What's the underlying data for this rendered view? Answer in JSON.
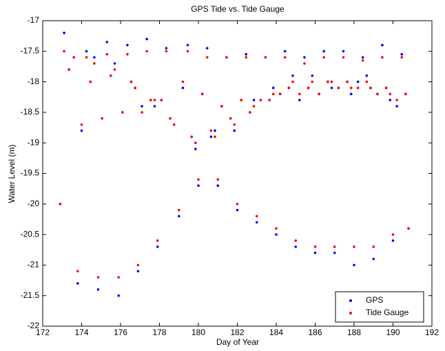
{
  "chart_data": {
    "type": "scatter",
    "title": "GPS Tide vs. Tide Gauge",
    "x_label": "Day of Year",
    "y_label": "Water Level (m)",
    "x": [
      172.9,
      173.1,
      173.35,
      173.6,
      173.8,
      174.0,
      174.25,
      174.45,
      174.65,
      174.85,
      175.05,
      175.3,
      175.5,
      175.7,
      175.9,
      176.1,
      176.35,
      176.55,
      176.75,
      176.9,
      177.1,
      177.35,
      177.55,
      177.75,
      177.9,
      178.1,
      178.35,
      178.55,
      178.75,
      179.0,
      179.2,
      179.45,
      179.65,
      179.85,
      180.0,
      180.2,
      180.45,
      180.65,
      180.85,
      181.0,
      181.2,
      181.45,
      181.65,
      181.85,
      182.0,
      182.2,
      182.45,
      182.65,
      182.85,
      183.0,
      183.2,
      183.45,
      183.65,
      183.85,
      184.0,
      184.2,
      184.45,
      184.65,
      184.85,
      185.0,
      185.2,
      185.45,
      185.65,
      185.85,
      186.0,
      186.2,
      186.45,
      186.65,
      186.85,
      187.0,
      187.2,
      187.45,
      187.65,
      187.85,
      188.0,
      188.2,
      188.45,
      188.65,
      188.85,
      189.0,
      189.2,
      189.45,
      189.65,
      189.85,
      190.0,
      190.2,
      190.45,
      190.65,
      190.8
    ],
    "series": [
      {
        "name": "GPS",
        "color": "#0000ff",
        "values": [
          -20.0,
          -17.2,
          -17.8,
          -17.6,
          -21.3,
          -18.8,
          -17.5,
          -18.0,
          -17.6,
          -21.4,
          -18.6,
          -17.35,
          -17.9,
          -17.7,
          -21.5,
          -18.5,
          -17.4,
          -18.0,
          -18.1,
          -21.1,
          -18.4,
          -17.3,
          -18.3,
          -18.4,
          -20.7,
          -18.3,
          -17.45,
          -18.6,
          -18.7,
          -20.2,
          -18.1,
          -17.4,
          -18.9,
          -19.1,
          -19.7,
          -18.2,
          -17.45,
          -18.9,
          -18.8,
          -19.7,
          -18.4,
          -17.6,
          -18.6,
          -18.8,
          -20.1,
          -18.3,
          -17.55,
          -18.5,
          -18.3,
          -20.3,
          -18.3,
          -17.6,
          -18.3,
          -18.1,
          -20.5,
          -18.2,
          -17.5,
          -18.1,
          -17.9,
          -20.7,
          -18.3,
          -17.6,
          -18.1,
          -17.9,
          -20.8,
          -18.2,
          -17.5,
          -18.0,
          -18.1,
          -20.8,
          -18.1,
          -17.5,
          -18.0,
          -18.2,
          -21.0,
          -18.0,
          -17.6,
          -17.9,
          -18.1,
          -20.9,
          -18.2,
          -17.4,
          -18.1,
          -18.3,
          -20.6,
          -18.4,
          -17.55,
          -18.2,
          -20.4
        ]
      },
      {
        "name": "Tide Gauge",
        "color": "#ff0000",
        "values": [
          -20.0,
          -17.5,
          -17.8,
          -17.6,
          -21.1,
          -18.7,
          -17.6,
          -18.0,
          -17.7,
          -21.2,
          -18.6,
          -17.55,
          -17.9,
          -17.8,
          -21.2,
          -18.5,
          -17.55,
          -18.0,
          -18.1,
          -21.0,
          -18.5,
          -17.5,
          -18.3,
          -18.3,
          -20.6,
          -18.3,
          -17.5,
          -18.6,
          -18.7,
          -20.1,
          -18.0,
          -17.5,
          -18.9,
          -19.0,
          -19.6,
          -18.2,
          -17.6,
          -18.8,
          -18.9,
          -19.6,
          -18.4,
          -17.6,
          -18.6,
          -18.7,
          -20.0,
          -18.3,
          -17.6,
          -18.5,
          -18.4,
          -20.2,
          -18.3,
          -17.6,
          -18.3,
          -18.2,
          -20.4,
          -18.2,
          -17.6,
          -18.1,
          -18.0,
          -20.6,
          -18.2,
          -17.7,
          -18.1,
          -18.0,
          -20.7,
          -18.2,
          -17.6,
          -18.0,
          -18.0,
          -20.7,
          -18.1,
          -17.6,
          -18.0,
          -18.1,
          -20.7,
          -18.1,
          -17.65,
          -18.0,
          -18.1,
          -20.7,
          -18.2,
          -17.6,
          -18.1,
          -18.2,
          -20.5,
          -18.3,
          -17.6,
          -18.2,
          -20.4
        ]
      }
    ],
    "xlim": [
      172,
      192
    ],
    "xticks": [
      172,
      174,
      176,
      178,
      180,
      182,
      184,
      186,
      188,
      190,
      192
    ],
    "ylim": [
      -22,
      -17
    ],
    "yticks": [
      -22,
      -21.5,
      -21,
      -20.5,
      -20,
      -19.5,
      -19,
      -18.5,
      -18,
      -17.5,
      -17
    ],
    "grid": false,
    "legend": "lower right"
  }
}
